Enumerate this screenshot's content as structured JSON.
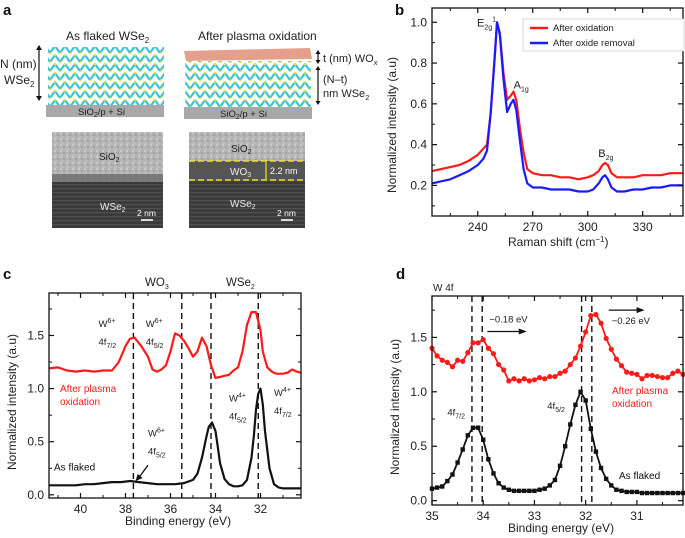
{
  "figure": {
    "panels": [
      "a",
      "b",
      "c",
      "d"
    ]
  },
  "panel_a": {
    "label": "a",
    "left_title": "As flaked WSe",
    "left_title_sub": "2",
    "right_title": "After plasma oxidation",
    "left_thickness_1": "N (nm)",
    "left_thickness_2": "WSe",
    "left_thickness_2_sub": "2",
    "right_thickness_top": "t (nm) WO",
    "right_thickness_top_sub": "x",
    "right_thickness_bottom_1": "(N–t)",
    "right_thickness_bottom_2": "nm WSe",
    "right_thickness_bottom_2_sub": "2",
    "substrate_label": "SiO",
    "substrate_sub": "2",
    "substrate_rest": "/p + Si",
    "tem_left": {
      "top": "SiO",
      "top_sub": "2",
      "bottom": "WSe",
      "bottom_sub": "2",
      "scale": "2 nm"
    },
    "tem_right": {
      "top": "SiO",
      "top_sub": "2",
      "middle": "WO",
      "middle_sub": "3",
      "thickness": "2.2 nm",
      "bottom": "WSe",
      "bottom_sub": "2",
      "scale": "2 nm"
    },
    "colors": {
      "oxide": "#e4a08c",
      "wse2": "#3cc4d4",
      "se": "#e0e040",
      "substrate": "#a8a8a8",
      "dash": "#f0e020"
    }
  },
  "chart_data": [
    {
      "panel": "b",
      "type": "line",
      "title": "",
      "xlabel": "Raman shift (cm⁻¹)",
      "xlabel_main": "Raman shift (cm",
      "xlabel_sup": "−1",
      "xlabel_end": ")",
      "ylabel": "Normalized intensity (a.u)",
      "xlim": [
        215,
        352
      ],
      "ylim": [
        0.05,
        1.07
      ],
      "xticks": [
        240,
        270,
        300,
        330
      ],
      "yticks": [
        0.2,
        0.4,
        0.6,
        0.8,
        1.0
      ],
      "ytick_labels": [
        "0.2",
        "0.4",
        "0.6",
        "0.8",
        "1.0"
      ],
      "legend": {
        "position": "top-right",
        "entries": [
          "After oxidation",
          "After oxide removal"
        ]
      },
      "annotations": [
        {
          "text": "E",
          "sub": "2g",
          "sup": "1",
          "x": 250.5,
          "y": 1.0
        },
        {
          "text": "A",
          "sub": "1g",
          "x": 259,
          "y": 0.69
        },
        {
          "text": "B",
          "sub": "2g",
          "x": 309,
          "y": 0.35
        }
      ],
      "series": [
        {
          "name": "After oxidation",
          "color": "#ff1a1a",
          "x": [
            215,
            220,
            225,
            230,
            235,
            240,
            243,
            245,
            247,
            249,
            250.5,
            252,
            254,
            256,
            258,
            259.5,
            261,
            263,
            265,
            267,
            270,
            275,
            280,
            285,
            290,
            295,
            300,
            303,
            306,
            308,
            309.5,
            311,
            313,
            316,
            320,
            325,
            330,
            335,
            340,
            345,
            352
          ],
          "y": [
            0.27,
            0.28,
            0.29,
            0.3,
            0.32,
            0.35,
            0.38,
            0.4,
            0.55,
            0.8,
            1.0,
            0.95,
            0.75,
            0.62,
            0.64,
            0.66,
            0.62,
            0.48,
            0.36,
            0.28,
            0.26,
            0.25,
            0.25,
            0.24,
            0.24,
            0.23,
            0.24,
            0.25,
            0.27,
            0.3,
            0.31,
            0.3,
            0.26,
            0.24,
            0.24,
            0.24,
            0.25,
            0.25,
            0.25,
            0.26,
            0.26
          ]
        },
        {
          "name": "After oxide removal",
          "color": "#1a1aff",
          "x": [
            215,
            220,
            225,
            230,
            235,
            240,
            243,
            245,
            247,
            249,
            250.5,
            252,
            254,
            256,
            258,
            259.5,
            261,
            263,
            265,
            267,
            270,
            275,
            280,
            285,
            290,
            295,
            300,
            303,
            306,
            308,
            309.5,
            311,
            313,
            316,
            320,
            325,
            330,
            335,
            340,
            345,
            352
          ],
          "y": [
            0.21,
            0.22,
            0.23,
            0.25,
            0.27,
            0.3,
            0.33,
            0.37,
            0.55,
            0.8,
            1.0,
            0.94,
            0.72,
            0.56,
            0.6,
            0.62,
            0.57,
            0.42,
            0.28,
            0.21,
            0.19,
            0.19,
            0.18,
            0.18,
            0.18,
            0.17,
            0.17,
            0.18,
            0.21,
            0.24,
            0.25,
            0.23,
            0.19,
            0.17,
            0.17,
            0.18,
            0.18,
            0.19,
            0.19,
            0.2,
            0.2
          ]
        }
      ]
    },
    {
      "panel": "c",
      "type": "line",
      "title": "",
      "xlabel": "Binding energy (eV)",
      "ylabel": "Normalized intensity (a.u)",
      "xlim": [
        41.4,
        30.2
      ],
      "ylim": [
        -0.03,
        1.9
      ],
      "xticks": [
        40,
        38,
        36,
        34,
        32
      ],
      "yticks": [
        0.0,
        0.5,
        1.0,
        1.5
      ],
      "ytick_labels": [
        "0.0",
        "0.5",
        "1.0",
        "1.5"
      ],
      "group_labels": [
        {
          "text": "WO",
          "sub": "3",
          "x": 36.6
        },
        {
          "text": "WSe",
          "sub": "2",
          "x": 33.0
        }
      ],
      "dashed_lines_x": [
        37.65,
        35.5,
        34.2,
        32.1
      ],
      "annotations": [
        {
          "line1": "W",
          "line1_sup": "6+",
          "line2": "4f",
          "line2_sub": "7/2",
          "x": 39.2,
          "y": 1.58
        },
        {
          "line1": "W",
          "line1_sup": "6+",
          "line2": "4f",
          "line2_sub": "5/2",
          "x": 37.1,
          "y": 1.58
        },
        {
          "line1": "W",
          "line1_sup": "6+",
          "line2": "4f",
          "line2_sub": "5/2",
          "x": 37.0,
          "y": 0.55
        },
        {
          "line1": "W",
          "line1_sup": "4+",
          "line2": "4f",
          "line2_sub": "5/2",
          "x": 33.4,
          "y": 0.88
        },
        {
          "line1": "W",
          "line1_sup": "4+",
          "line2": "4f",
          "line2_sub": "7/2",
          "x": 31.4,
          "y": 0.93
        }
      ],
      "series_labels": [
        {
          "text": "After plasma",
          "text2": "oxidation",
          "color": "#ff1a1a"
        },
        {
          "text": "As flaked",
          "color": "#111111"
        }
      ],
      "series": [
        {
          "name": "After plasma oxidation",
          "color": "#ff1a1a",
          "x": [
            41.4,
            41.0,
            40.6,
            40.2,
            39.8,
            39.4,
            39.0,
            38.6,
            38.3,
            38.0,
            37.8,
            37.6,
            37.3,
            37.0,
            36.8,
            36.6,
            36.4,
            36.2,
            36.0,
            35.8,
            35.6,
            35.4,
            35.2,
            35.0,
            34.8,
            34.6,
            34.4,
            34.2,
            34.0,
            33.8,
            33.6,
            33.4,
            33.2,
            33.0,
            32.8,
            32.6,
            32.4,
            32.2,
            32.0,
            31.9,
            31.7,
            31.5,
            31.3,
            31.0,
            30.8,
            30.6,
            30.4,
            30.2
          ],
          "y": [
            1.19,
            1.2,
            1.17,
            1.16,
            1.17,
            1.16,
            1.17,
            1.17,
            1.25,
            1.4,
            1.47,
            1.48,
            1.4,
            1.3,
            1.18,
            1.16,
            1.18,
            1.22,
            1.35,
            1.52,
            1.5,
            1.45,
            1.38,
            1.3,
            1.35,
            1.48,
            1.4,
            1.22,
            1.1,
            1.11,
            1.12,
            1.13,
            1.17,
            1.2,
            1.35,
            1.6,
            1.72,
            1.72,
            1.55,
            1.35,
            1.2,
            1.16,
            1.14,
            1.14,
            1.15,
            1.18,
            1.16,
            1.15
          ]
        },
        {
          "name": "As flaked",
          "color": "#111111",
          "x": [
            41.4,
            41.0,
            40.6,
            40.2,
            39.8,
            39.4,
            39.0,
            38.6,
            38.2,
            37.8,
            37.4,
            37.0,
            36.6,
            36.2,
            35.8,
            35.4,
            35.0,
            34.8,
            34.6,
            34.4,
            34.3,
            34.15,
            34.0,
            33.9,
            33.8,
            33.6,
            33.4,
            33.2,
            33.0,
            32.8,
            32.6,
            32.4,
            32.3,
            32.2,
            32.1,
            32.0,
            31.9,
            31.8,
            31.6,
            31.4,
            31.2,
            31.0,
            30.8,
            30.6,
            30.4,
            30.2
          ],
          "y": [
            0.09,
            0.09,
            0.09,
            0.09,
            0.1,
            0.1,
            0.11,
            0.12,
            0.12,
            0.13,
            0.12,
            0.11,
            0.1,
            0.1,
            0.1,
            0.11,
            0.14,
            0.2,
            0.35,
            0.55,
            0.64,
            0.68,
            0.6,
            0.45,
            0.3,
            0.15,
            0.1,
            0.08,
            0.08,
            0.09,
            0.14,
            0.35,
            0.55,
            0.8,
            0.95,
            1.0,
            0.85,
            0.6,
            0.25,
            0.1,
            0.07,
            0.06,
            0.06,
            0.06,
            0.06,
            0.06
          ]
        }
      ],
      "arrow": {
        "from": [
          37.0,
          0.28
        ],
        "to": [
          37.55,
          0.13
        ]
      }
    },
    {
      "panel": "d",
      "type": "line",
      "title": "W 4f",
      "xlabel": "Binding energy (eV)",
      "ylabel": "Normalized intensity (a.u)",
      "xlim": [
        35.0,
        30.1
      ],
      "ylim": [
        -0.04,
        1.88
      ],
      "xticks": [
        35,
        34,
        33,
        32,
        31
      ],
      "yticks": [
        0.0,
        0.5,
        1.0,
        1.5
      ],
      "ytick_labels": [
        "0.0",
        "0.5",
        "1.0",
        "1.5"
      ],
      "dashed_lines_x": [
        34.22,
        34.02,
        32.08,
        31.88
      ],
      "shift_labels": [
        {
          "text": "−0.18 eV",
          "x_start": 33.92,
          "x_end": 33.15,
          "y": 1.6
        },
        {
          "text": "−0.26 eV",
          "x_start": 31.55,
          "x_end": 30.85,
          "y": 1.75
        }
      ],
      "annotations": [
        {
          "text": "4f",
          "sub": "7/2",
          "x": 34.7,
          "y": 0.78
        },
        {
          "text": "4f",
          "sub": "5/2",
          "x": 32.75,
          "y": 0.84
        }
      ],
      "series_labels": [
        {
          "text": "After plasma",
          "text2": "oxidation",
          "color": "#ff1a1a"
        },
        {
          "text": "As flaked",
          "color": "#111111"
        }
      ],
      "series": [
        {
          "name": "After plasma oxidation",
          "color": "#ff1a1a",
          "marker": "circle",
          "x": [
            35.0,
            34.9,
            34.8,
            34.7,
            34.6,
            34.5,
            34.4,
            34.3,
            34.2,
            34.1,
            34.0,
            33.9,
            33.8,
            33.7,
            33.6,
            33.5,
            33.4,
            33.3,
            33.2,
            33.1,
            33.0,
            32.9,
            32.8,
            32.7,
            32.6,
            32.5,
            32.4,
            32.3,
            32.2,
            32.1,
            32.0,
            31.9,
            31.8,
            31.7,
            31.6,
            31.5,
            31.4,
            31.3,
            31.2,
            31.1,
            31.0,
            30.9,
            30.8,
            30.7,
            30.6,
            30.5,
            30.4,
            30.3,
            30.2,
            30.1
          ],
          "y": [
            1.4,
            1.33,
            1.29,
            1.27,
            1.23,
            1.29,
            1.28,
            1.36,
            1.45,
            1.45,
            1.48,
            1.4,
            1.35,
            1.25,
            1.2,
            1.1,
            1.12,
            1.1,
            1.12,
            1.1,
            1.11,
            1.13,
            1.12,
            1.14,
            1.14,
            1.17,
            1.19,
            1.25,
            1.31,
            1.42,
            1.55,
            1.7,
            1.71,
            1.63,
            1.49,
            1.39,
            1.3,
            1.24,
            1.18,
            1.17,
            1.16,
            1.12,
            1.15,
            1.15,
            1.14,
            1.13,
            1.13,
            1.17,
            1.19,
            1.16
          ]
        },
        {
          "name": "As flaked",
          "color": "#111111",
          "marker": "square",
          "x": [
            35.0,
            34.9,
            34.8,
            34.7,
            34.6,
            34.5,
            34.4,
            34.3,
            34.2,
            34.1,
            34.0,
            33.9,
            33.8,
            33.7,
            33.6,
            33.5,
            33.4,
            33.3,
            33.2,
            33.1,
            33.0,
            32.9,
            32.8,
            32.7,
            32.6,
            32.5,
            32.4,
            32.3,
            32.2,
            32.1,
            32.0,
            31.9,
            31.8,
            31.7,
            31.6,
            31.5,
            31.4,
            31.3,
            31.2,
            31.1,
            31.0,
            30.9,
            30.8,
            30.7,
            30.6,
            30.5,
            30.4,
            30.3,
            30.2,
            30.1
          ],
          "y": [
            0.11,
            0.12,
            0.13,
            0.18,
            0.24,
            0.35,
            0.47,
            0.6,
            0.67,
            0.67,
            0.56,
            0.38,
            0.25,
            0.16,
            0.12,
            0.1,
            0.09,
            0.09,
            0.09,
            0.09,
            0.09,
            0.1,
            0.11,
            0.14,
            0.19,
            0.32,
            0.5,
            0.7,
            0.88,
            1.0,
            0.92,
            0.66,
            0.45,
            0.3,
            0.2,
            0.14,
            0.1,
            0.09,
            0.08,
            0.08,
            0.08,
            0.07,
            0.07,
            0.07,
            0.07,
            0.07,
            0.07,
            0.07,
            0.07,
            0.07
          ]
        }
      ]
    }
  ]
}
